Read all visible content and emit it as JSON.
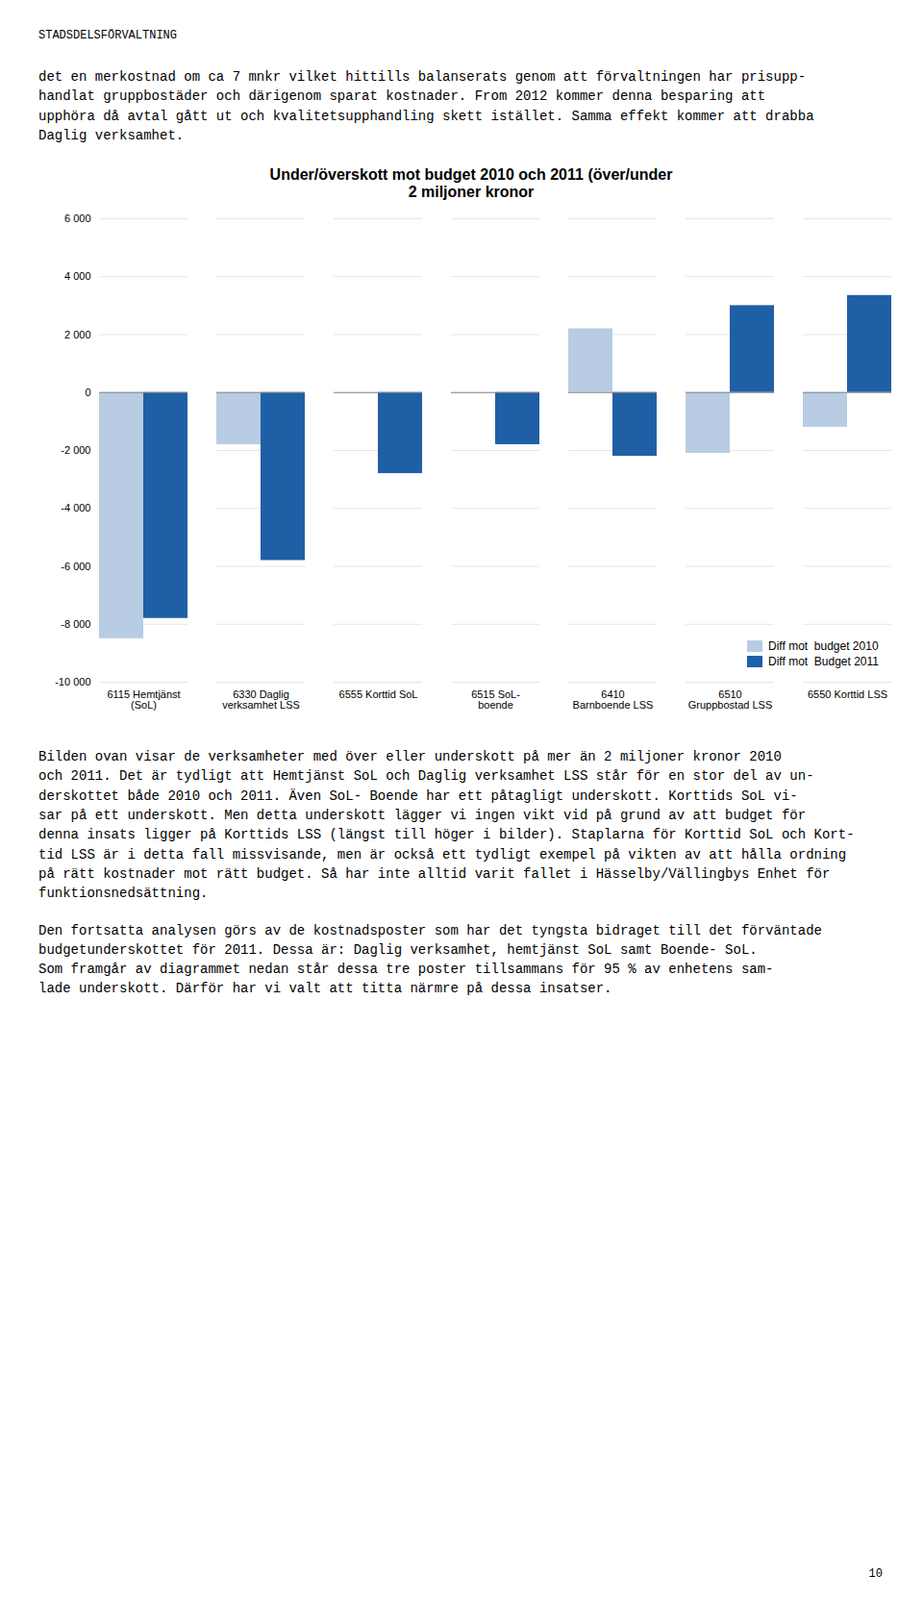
{
  "page": {
    "header": "STADSDELSFÖRVALTNING",
    "paragraphs": [
      "det en merkostnad om ca 7 mnkr vilket hittills balanserats genom att förvaltningen har prisupp-\nhandlat gruppbostäder och därigenom sparat kostnader. From 2012 kommer denna besparing att\nupphöra då avtal gått ut och kvalitetsupphandling skett istället. Samma effekt kommer att drabba\nDaglig verksamhet.",
      "Bilden ovan visar de verksamheter med över eller underskott på mer än 2 miljoner kronor 2010\noch 2011. Det är tydligt att Hemtjänst SoL och Daglig verksamhet LSS står för en stor del av un-\nderskottet både 2010 och 2011. Även SoL- Boende har ett påtagligt underskott. Korttids SoL vi-\nsar på ett underskott. Men detta underskott lägger vi ingen vikt vid på grund av att budget för\ndenna insats ligger på Korttids LSS (längst till höger i bilder). Staplarna för Korttid SoL och Kort-\ntid LSS är i detta fall missvisande, men är också ett tydligt exempel på vikten av att hålla ordning\npå rätt kostnader mot rätt budget. Så har inte alltid varit fallet i Hässelby/Vällingbys Enhet för\nfunktionsnedsättning.",
      "Den fortsatta analysen görs av de kostnadsposter som har det tyngsta bidraget till det förväntade\nbudgetunderskottet för 2011. Dessa är: Daglig verksamhet, hemtjänst SoL samt Boende- SoL.\nSom framgår av diagrammet nedan står dessa tre poster tillsammans för 95 % av enhetens sam-\nlade underskott. Därför har vi valt att titta närmre på dessa insatser."
    ],
    "page_number": "10"
  },
  "chart_data": {
    "type": "bar",
    "title": "Under/överskott mot budget 2010 och 2011 (över/under\n2 miljoner kronor",
    "categories": [
      "6115 Hemtjänst\n(SoL)",
      "6330 Daglig\nverksamhet LSS",
      "6555 Korttid SoL",
      "6515 SoL-\nboende",
      "6410\nBarnboende LSS",
      "6510\nGruppbostad LSS",
      "6550 Korttid LSS"
    ],
    "series": [
      {
        "name": "Diff mot  budget 2010",
        "color": "#b8cce4",
        "values": [
          -8500,
          -1800,
          0,
          0,
          2200,
          -2100,
          -1200
        ]
      },
      {
        "name": "Diff mot  Budget 2011",
        "color": "#1f5fa6",
        "values": [
          -7800,
          -5800,
          -2800,
          -1800,
          -2200,
          3000,
          3350
        ]
      }
    ],
    "ylim": [
      -10000,
      6000
    ],
    "yticks": [
      {
        "value": -10000,
        "label": "-10 000"
      },
      {
        "value": -8000,
        "label": "-8 000"
      },
      {
        "value": -6000,
        "label": "-6 000"
      },
      {
        "value": -4000,
        "label": "-4 000"
      },
      {
        "value": -2000,
        "label": "-2 000"
      },
      0,
      {
        "value": 2000,
        "label": "2 000"
      },
      {
        "value": 4000,
        "label": "4 000"
      },
      {
        "value": 6000,
        "label": "6 000"
      }
    ],
    "grid": true,
    "legend": "lower right"
  }
}
